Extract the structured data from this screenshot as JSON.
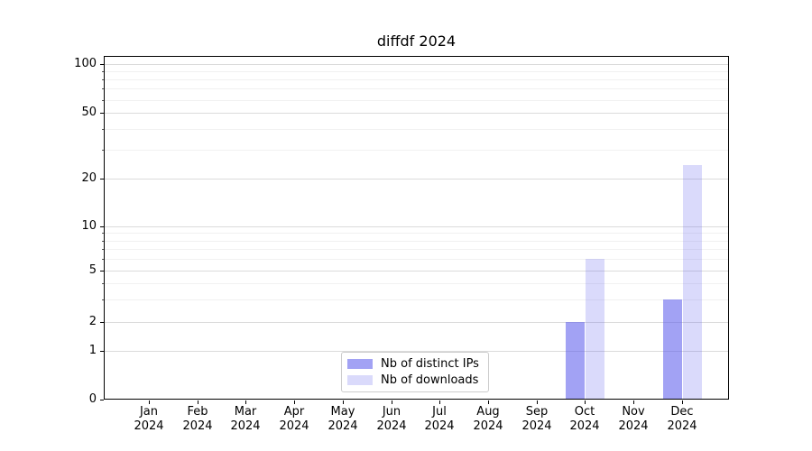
{
  "chart_data": {
    "type": "bar",
    "title": "diffdf 2024",
    "categories": [
      "Jan",
      "Feb",
      "Mar",
      "Apr",
      "May",
      "Jun",
      "Jul",
      "Aug",
      "Sep",
      "Oct",
      "Nov",
      "Dec"
    ],
    "year_label": "2024",
    "series": [
      {
        "name": "Nb of distinct IPs",
        "color": "rgba(85,85,235,0.55)",
        "color_hex_on_white": "#a4a4f1",
        "values": [
          0,
          0,
          0,
          0,
          0,
          0,
          0,
          0,
          0,
          2,
          0,
          3
        ]
      },
      {
        "name": "Nb of downloads",
        "color": "rgba(85,85,235,0.22)",
        "color_hex_on_white": "#dadaf9",
        "values": [
          0,
          0,
          0,
          0,
          0,
          0,
          0,
          0,
          0,
          6,
          0,
          24
        ]
      }
    ],
    "y_axis": {
      "scale": "symlog-like",
      "ticks": [
        0,
        1,
        2,
        5,
        10,
        20,
        50,
        100
      ],
      "minor_ticks": [
        3,
        4,
        6,
        7,
        8,
        9,
        30,
        40,
        60,
        70,
        80,
        90
      ],
      "ylim": [
        0,
        110
      ]
    },
    "x_axis": {
      "tick_label_format": "Month over Year, two lines"
    },
    "grid": true,
    "legend_position": "lower center"
  }
}
